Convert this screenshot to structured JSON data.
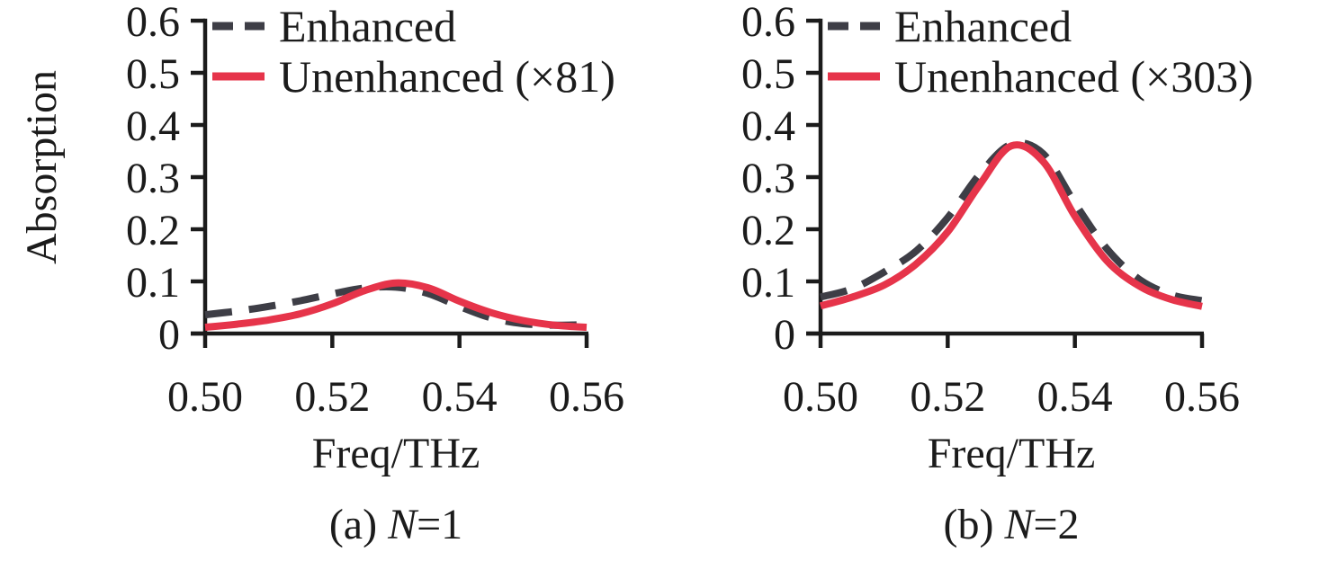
{
  "colors": {
    "axis": "#1b1b1b",
    "text": "#1b1b1b",
    "enhanced": "#3e3e46",
    "unenhanced": "#e6344a"
  },
  "chart_data": [
    {
      "type": "line",
      "caption": {
        "prefix": "(a) ",
        "variable": "N",
        "suffix": "=1"
      },
      "xlabel": "Freq/THz",
      "ylabel": "Absorption",
      "xlim": [
        0.5,
        0.56
      ],
      "ylim": [
        0,
        0.6
      ],
      "grid": false,
      "legend": {
        "position": "top-left",
        "entries": [
          {
            "name": "Enhanced",
            "style": "dashed",
            "color": "#3e3e46"
          },
          {
            "name": "Unenhanced (×81)",
            "style": "solid",
            "color": "#e6344a"
          }
        ]
      },
      "xticks": {
        "values": [
          0.5,
          0.52,
          0.54,
          0.56
        ],
        "labels": [
          "0.50",
          "0.52",
          "0.54",
          "0.56"
        ]
      },
      "yticks": {
        "values": [
          0,
          0.1,
          0.2,
          0.3,
          0.4,
          0.5,
          0.6
        ],
        "labels": [
          "0",
          "0.1",
          "0.2",
          "0.3",
          "0.4",
          "0.5",
          "0.6"
        ]
      },
      "x": [
        0.5,
        0.505,
        0.51,
        0.515,
        0.52,
        0.525,
        0.53,
        0.535,
        0.54,
        0.545,
        0.55,
        0.555,
        0.56
      ],
      "series": [
        {
          "name": "Enhanced",
          "style": "dashed",
          "color": "#3e3e46",
          "values": [
            0.036,
            0.043,
            0.052,
            0.063,
            0.076,
            0.087,
            0.089,
            0.077,
            0.052,
            0.03,
            0.019,
            0.016,
            0.017
          ]
        },
        {
          "name": "Unenhanced (×81)",
          "style": "solid",
          "color": "#e6344a",
          "values": [
            0.012,
            0.018,
            0.026,
            0.038,
            0.057,
            0.082,
            0.097,
            0.088,
            0.062,
            0.04,
            0.025,
            0.016,
            0.012
          ]
        }
      ]
    },
    {
      "type": "line",
      "caption": {
        "prefix": "(b) ",
        "variable": "N",
        "suffix": "=2"
      },
      "xlabel": "Freq/THz",
      "ylabel": "Absorption",
      "xlim": [
        0.5,
        0.56
      ],
      "ylim": [
        0,
        0.6
      ],
      "grid": false,
      "legend": {
        "position": "top-left",
        "entries": [
          {
            "name": "Enhanced",
            "style": "dashed",
            "color": "#3e3e46"
          },
          {
            "name": "Unenhanced (×303)",
            "style": "solid",
            "color": "#e6344a"
          }
        ]
      },
      "xticks": {
        "values": [
          0.5,
          0.52,
          0.54,
          0.56
        ],
        "labels": [
          "0.50",
          "0.52",
          "0.54",
          "0.56"
        ]
      },
      "yticks": {
        "values": [
          0,
          0.1,
          0.2,
          0.3,
          0.4,
          0.5,
          0.6
        ],
        "labels": [
          "0",
          "0.1",
          "0.2",
          "0.3",
          "0.4",
          "0.5",
          "0.6"
        ]
      },
      "x": [
        0.5,
        0.505,
        0.51,
        0.515,
        0.52,
        0.525,
        0.53,
        0.535,
        0.54,
        0.545,
        0.55,
        0.555,
        0.56
      ],
      "series": [
        {
          "name": "Enhanced",
          "style": "dashed",
          "color": "#3e3e46",
          "values": [
            0.07,
            0.086,
            0.118,
            0.158,
            0.222,
            0.305,
            0.363,
            0.345,
            0.25,
            0.163,
            0.105,
            0.075,
            0.063
          ]
        },
        {
          "name": "Unenhanced (×303)",
          "style": "solid",
          "color": "#e6344a",
          "values": [
            0.053,
            0.07,
            0.093,
            0.133,
            0.195,
            0.285,
            0.36,
            0.33,
            0.225,
            0.14,
            0.092,
            0.066,
            0.052
          ]
        }
      ]
    }
  ]
}
